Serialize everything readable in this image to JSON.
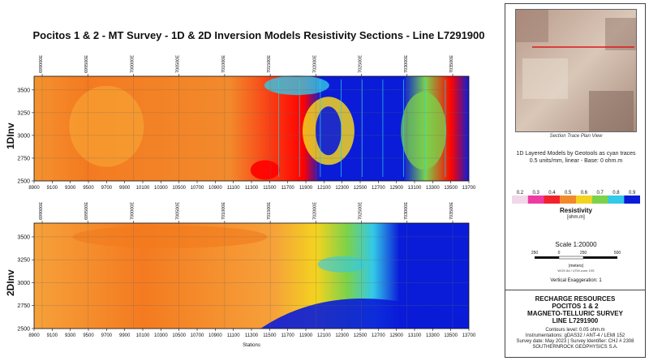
{
  "title": "Pocitos 1 & 2 - MT Survey - 1D & 2D Inversion Models Resistivity Sections - Line L7291900",
  "top_panel": {
    "ylabel": "1DInv",
    "y_ticks": [
      "3500",
      "3250",
      "3000",
      "2750",
      "2500"
    ],
    "x_ticks": [
      "8900",
      "9100",
      "9300",
      "9500",
      "9700",
      "9900",
      "10100",
      "10300",
      "10500",
      "10700",
      "10900",
      "11100",
      "11300",
      "11500",
      "11700",
      "11900",
      "12100",
      "12300",
      "12500",
      "12700",
      "12900",
      "13100",
      "13300",
      "13500",
      "13700"
    ],
    "easting_ticks": [
      "699000E",
      "699500E",
      "700000E",
      "700500E",
      "701000E",
      "701500E",
      "702000E",
      "702500E",
      "703000E",
      "703500E"
    ]
  },
  "bottom_panel": {
    "ylabel": "2DInv",
    "y_ticks": [
      "3500",
      "3250",
      "3000",
      "2750",
      "2500"
    ],
    "x_ticks": [
      "8900",
      "9100",
      "9300",
      "9500",
      "9700",
      "9900",
      "10100",
      "10300",
      "10500",
      "10700",
      "10900",
      "11100",
      "11300",
      "11500",
      "11700",
      "11900",
      "12100",
      "12300",
      "12500",
      "12700",
      "12900",
      "13100",
      "13300",
      "13500",
      "13700"
    ],
    "xlabel": "Stations",
    "easting_ticks": [
      "699000E",
      "699500E",
      "700000E",
      "700500E",
      "701000E",
      "701500E",
      "702000E",
      "702500E",
      "703000E",
      "703500E"
    ]
  },
  "side": {
    "map_caption": "Section Trace Plan View",
    "layer_note": [
      "1D Layered Models by Geotools as cyan traces",
      "0.5 units/mm, linear - Base: 0 ohm.m"
    ],
    "colorbar_ticks": [
      "0.2",
      "0.3",
      "0.4",
      "0.5",
      "0.6",
      "0.7",
      "0.8",
      "0.9"
    ],
    "colorbar_title": "Resistivity",
    "colorbar_unit": "[ohm.m]",
    "scale_title": "Scale 1:20000",
    "scale_ticks": [
      "250",
      "0",
      "250",
      "500"
    ],
    "scale_unit": "(meters)",
    "projection": "WGS 84 / UTM zone 19S",
    "vertical_exaggeration": "Vertical Exaggeration: 1",
    "title_block": {
      "company": "RECHARGE RESOURCES",
      "project": "POCITOS 1 & 2",
      "survey": "MAGNETO-TELLURIC SURVEY",
      "line": "LINE L7291900",
      "contours": "Contours level: 0.05 ohm.m",
      "instruments": "Instrumentations: gDAS32 / ANT-4 / LEMI 152",
      "date": "Survey date: May 2023 | Survey Identifier: CHJ # 2308",
      "contractor": "SOUTHERNROCK GEOPHYSICS S.A."
    }
  },
  "colors": {
    "low": "#ff0000",
    "orange": "#f47a20",
    "yellow": "#f3d31f",
    "green": "#7cd24a",
    "cyan": "#33c9e8",
    "blue": "#0a1cd8",
    "trace": "#2ad0e0",
    "map_line": "#e01818"
  },
  "chart_data": [
    {
      "type": "heatmap",
      "title": "Pocitos 1 & 2 - MT Survey - 1D & 2D Inversion Models Resistivity Sections - Line L7291900",
      "ylabel": "1DInv",
      "xlabel": "",
      "xlim": [
        8900,
        13700
      ],
      "ylim": [
        2500,
        3650
      ],
      "colorbar": {
        "label": "Resistivity [ohm.m]",
        "range": [
          0.2,
          0.9
        ]
      },
      "description_regions": [
        {
          "x_from": 8900,
          "x_to": 11600,
          "value": 0.4
        },
        {
          "x_from": 11700,
          "x_to": 12900,
          "value": 0.9
        },
        {
          "x_from": 12900,
          "x_to": 13500,
          "value": 0.7
        },
        {
          "x_from": 13500,
          "x_to": 13700,
          "value": 0.9
        }
      ]
    },
    {
      "type": "heatmap",
      "ylabel": "2DInv",
      "xlabel": "Stations",
      "xlim": [
        8900,
        13700
      ],
      "ylim": [
        2500,
        3650
      ],
      "colorbar": {
        "label": "Resistivity [ohm.m]",
        "range": [
          0.2,
          0.9
        ]
      },
      "description_regions": [
        {
          "x_from": 8900,
          "x_to": 11700,
          "value": 0.4
        },
        {
          "x_from": 11700,
          "x_to": 12100,
          "value": 0.6
        },
        {
          "x_from": 12100,
          "x_to": 13700,
          "value": 0.9
        }
      ]
    }
  ]
}
